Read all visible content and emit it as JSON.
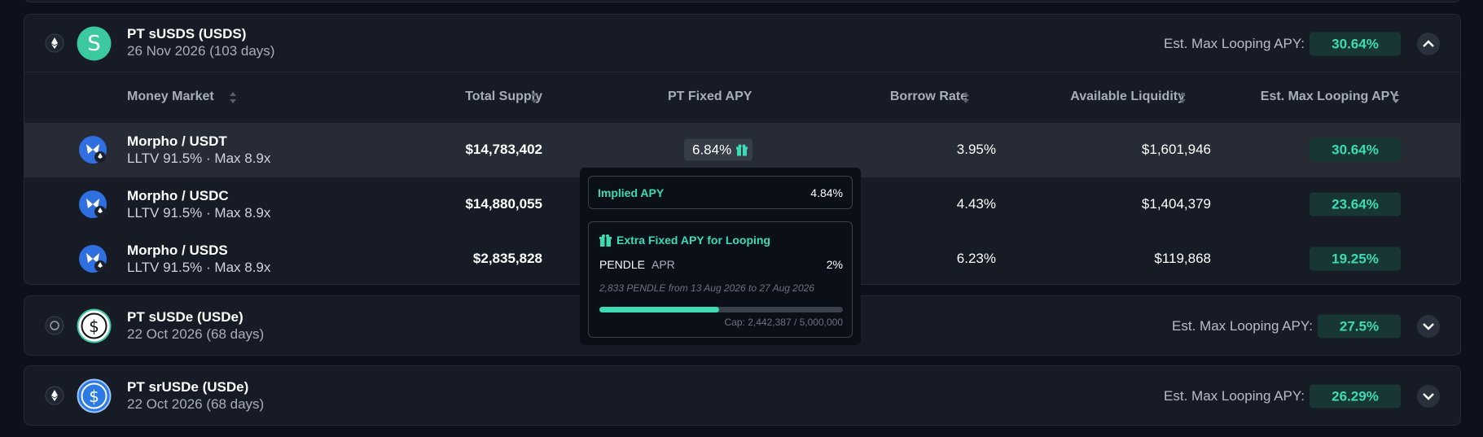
{
  "groups": [
    {
      "title": "PT sUSDS (USDS)",
      "date": "26 Nov 2026 (103 days)",
      "apy_label": "Est. Max Looping APY:",
      "apy": "30.64%"
    },
    {
      "title": "PT sUSDe (USDe)",
      "date": "22 Oct 2026 (68 days)",
      "apy_label": "Est. Max Looping APY:",
      "apy": "27.5%"
    },
    {
      "title": "PT srUSDe (USDe)",
      "date": "22 Oct 2026 (68 days)",
      "apy_label": "Est. Max Looping APY:",
      "apy": "26.29%"
    }
  ],
  "table": {
    "columns": [
      "Money Market",
      "Total Supply",
      "PT Fixed APY",
      "Borrow Rate",
      "Available Liquidity",
      "Est. Max Looping APY"
    ],
    "rows": [
      {
        "market": "Morpho / USDT",
        "details": "LLTV 91.5% · Max 8.9x",
        "total_supply": "$14,783,402",
        "pt_fixed_apy": "6.84%",
        "borrow_rate": "3.95%",
        "available_liquidity": "$1,601,946",
        "looping_apy": "30.64%"
      },
      {
        "market": "Morpho / USDC",
        "details": "LLTV 91.5% · Max 8.9x",
        "total_supply": "$14,880,055",
        "borrow_rate": "4.43%",
        "available_liquidity": "$1,404,379",
        "looping_apy": "23.64%"
      },
      {
        "market": "Morpho / USDS",
        "details": "LLTV 91.5% · Max 8.9x",
        "total_supply": "$2,835,828",
        "borrow_rate": "6.23%",
        "available_liquidity": "$119,868",
        "looping_apy": "19.25%"
      }
    ]
  },
  "tooltip": {
    "implied_label": "Implied APY",
    "implied_value": "4.84%",
    "extra_title": "Extra Fixed APY for Looping",
    "token": "PENDLE",
    "token_metric": "APR",
    "token_value": "2%",
    "note": "2,833 PENDLE from 13 Aug 2026 to 27 Aug 2026",
    "cap": "Cap: 2,442,387 / 5,000,000"
  }
}
